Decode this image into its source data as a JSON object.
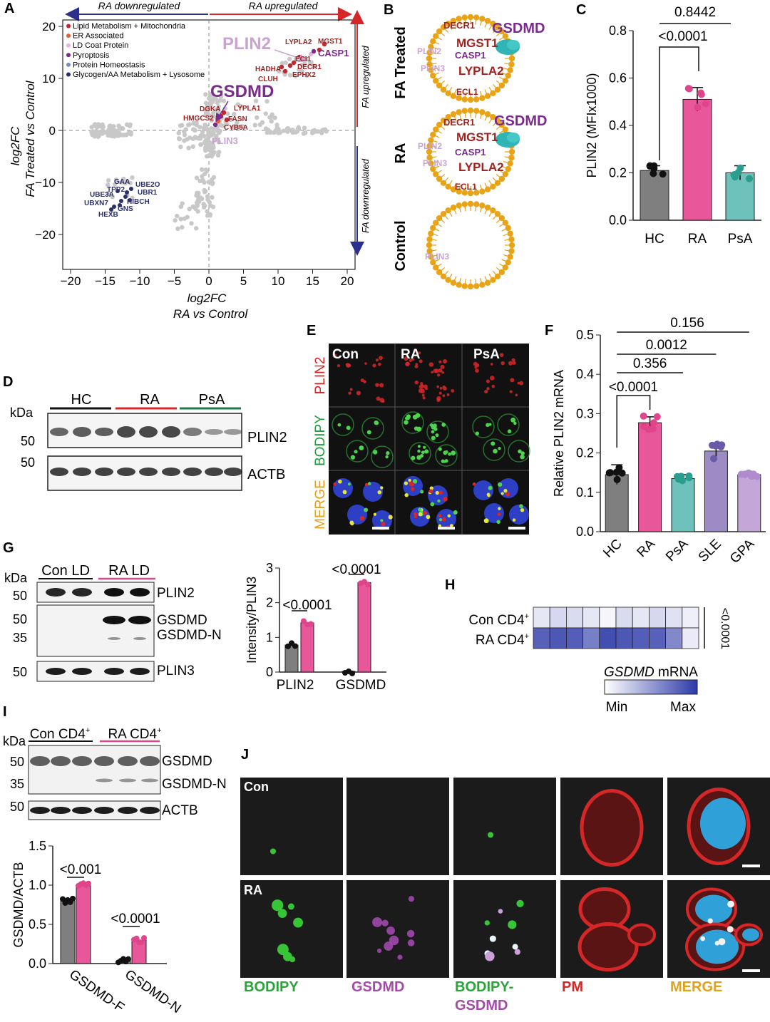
{
  "panels": {
    "A": "A",
    "B": "B",
    "C": "C",
    "D": "D",
    "E": "E",
    "F": "F",
    "G": "G",
    "H": "H",
    "I": "I",
    "J": "J"
  },
  "panelA": {
    "arrow_down": "RA downregulated",
    "arrow_up": "RA upregulated",
    "fa_up": "FA upregulated",
    "fa_down": "FA downregulated",
    "xlabel_1": "log2FC",
    "xlabel_2": "RA vs Control",
    "ylabel_1": "log2FC",
    "ylabel_2": "FA Treated vs Control",
    "xticks": [
      "−20",
      "−15",
      "−10",
      "−5",
      "0",
      "5",
      "10",
      "15",
      "20"
    ],
    "yticks": [
      "20",
      "10",
      "0",
      "−10",
      "−20"
    ],
    "legend": [
      {
        "label": "Lipid Metabolism + Mitochondria",
        "color": "#c0282d"
      },
      {
        "label": "ER Associated",
        "color": "#e0603a"
      },
      {
        "label": "LD Coat Protein",
        "color": "#e3b6d8"
      },
      {
        "label": "Pyroptosis",
        "color": "#7b2a8e"
      },
      {
        "label": "Protein Homeostasis",
        "color": "#6f8fc9"
      },
      {
        "label": "Glycogen/AA Metabolism + Lysosome",
        "color": "#2b2f6b"
      }
    ],
    "big_labels": [
      "PLIN2",
      "GSDMD"
    ],
    "up_genes": [
      "LYPLA2",
      "MGST1",
      "CASP1",
      "ECI1",
      "HADHA",
      "DECR1",
      "CLUH",
      "EPHX2",
      "DGKA",
      "LYPLA1",
      "HMGCS2",
      "FASN",
      "CYB5A",
      "PLIN3"
    ],
    "down_genes": [
      "GAA",
      "UBE2O",
      "TPP2",
      "UBR1",
      "UBE3A",
      "HIBCH",
      "UBXN7",
      "GNS",
      "HEXB"
    ]
  },
  "panelB": {
    "rows": [
      "FA Treated",
      "RA",
      "Control"
    ],
    "row1": {
      "decr1": "DECR1",
      "gsdmd": "GSDMD",
      "mgst1": "MGST1",
      "plin2": "PLIN2",
      "casp1": "CASP1",
      "plin3": "PLIN3",
      "lypla2": "LYPLA2",
      "ecl1": "ECL1"
    },
    "row2": {
      "decr1": "DECR1",
      "gsdmd": "GSDMD",
      "mgst1": "MGST1",
      "plin2": "PLIN2",
      "casp1": "CASP1",
      "plin3": "PLIN3",
      "lypla2": "LYPLA2",
      "ecl1": "ECL1"
    },
    "row3": {
      "plin3": "PLIN3"
    }
  },
  "panelC": {
    "ylabel": "PLIN2 (MFIx1000)",
    "yticks": [
      "0.0",
      "0.2",
      "0.4",
      "0.6",
      "0.8"
    ],
    "p1": "<0.0001",
    "p2": "0.8442",
    "chart_data": {
      "type": "bar",
      "categories": [
        "HC",
        "RA",
        "PsA"
      ],
      "values": [
        0.21,
        0.51,
        0.2
      ],
      "ylim": [
        0,
        0.8
      ]
    }
  },
  "panelD": {
    "kda": "kDa",
    "groups": [
      "HC",
      "RA",
      "PsA"
    ],
    "m50a": "50",
    "m50b": "50",
    "band1": "PLIN2",
    "band2": "ACTB"
  },
  "panelE": {
    "cols": [
      "Con",
      "RA",
      "PsA"
    ],
    "rows": [
      "PLIN2",
      "BODIPY",
      "MERGE"
    ]
  },
  "panelF": {
    "ylabel": "Relative PLIN2 mRNA",
    "yticks": [
      "0.0",
      "0.1",
      "0.2",
      "0.3",
      "0.4",
      "0.5"
    ],
    "pvals": [
      "0.156",
      "0.0012",
      "0.356",
      "<0.0001"
    ],
    "chart_data": {
      "type": "bar",
      "categories": [
        "HC",
        "RA",
        "PsA",
        "SLE",
        "GPA"
      ],
      "values": [
        0.145,
        0.277,
        0.135,
        0.205,
        0.145
      ],
      "ylim": [
        0,
        0.5
      ]
    }
  },
  "panelG": {
    "kda": "kDa",
    "groups": [
      "Con LD",
      "RA LD"
    ],
    "m50a": "50",
    "m50b": "50",
    "m35": "35",
    "m50c": "50",
    "bands": [
      "PLIN2",
      "GSDMD",
      "GSDMD-N",
      "PLIN3"
    ],
    "ylabel": "Intensity/PLIN3",
    "yticks": [
      "0",
      "1",
      "2",
      "3"
    ],
    "p1": "<0.0001",
    "p2": "<0.0001",
    "chart_data": {
      "type": "bar",
      "categories": [
        "PLIN2",
        "GSDMD"
      ],
      "series": [
        {
          "values": [
            0.78,
            0.02
          ]
        },
        {
          "values": [
            1.42,
            2.58
          ]
        }
      ],
      "ylim": [
        0,
        3
      ]
    }
  },
  "panelH": {
    "rows": [
      "Con CD4",
      "RA CD4"
    ],
    "sup": "+",
    "pval": "<0.0001",
    "scale_title": "mRNA",
    "scale_gene": "GSDMD",
    "min": "Min",
    "max": "Max",
    "chart_data": {
      "type": "heatmap",
      "rows": [
        "Con CD4+",
        "RA CD4+"
      ],
      "values": [
        [
          0.12,
          0.2,
          0.18,
          0.12,
          0.05,
          0.18,
          0.12,
          0.2,
          0.15,
          0.08
        ],
        [
          0.8,
          0.85,
          0.82,
          0.65,
          0.9,
          0.85,
          0.82,
          0.8,
          0.6,
          0.1
        ]
      ]
    }
  },
  "panelI": {
    "kda": "kDa",
    "groups": [
      "Con CD4",
      "RA CD4"
    ],
    "sup": "+",
    "m50a": "50",
    "m35": "35",
    "m50b": "50",
    "bands": [
      "GSDMD",
      "GSDMD-N",
      "ACTB"
    ],
    "ylabel": "GSDMD/ACTB",
    "yticks": [
      "0.0",
      "0.5",
      "1.0",
      "1.5"
    ],
    "p1": "<0.001",
    "p2": "<0.0001",
    "chart_data": {
      "type": "bar",
      "categories": [
        "GSDMD-F",
        "GSDMD-N"
      ],
      "series": [
        {
          "values": [
            0.8,
            0.03
          ]
        },
        {
          "values": [
            1.0,
            0.3
          ]
        }
      ],
      "ylim": [
        0,
        1.5
      ]
    }
  },
  "panelJ": {
    "rows": [
      "Con",
      "RA"
    ],
    "cols": [
      "BODIPY",
      "GSDMD",
      "BODIPY-",
      "GSDMD",
      "PM",
      "MERGE"
    ]
  }
}
